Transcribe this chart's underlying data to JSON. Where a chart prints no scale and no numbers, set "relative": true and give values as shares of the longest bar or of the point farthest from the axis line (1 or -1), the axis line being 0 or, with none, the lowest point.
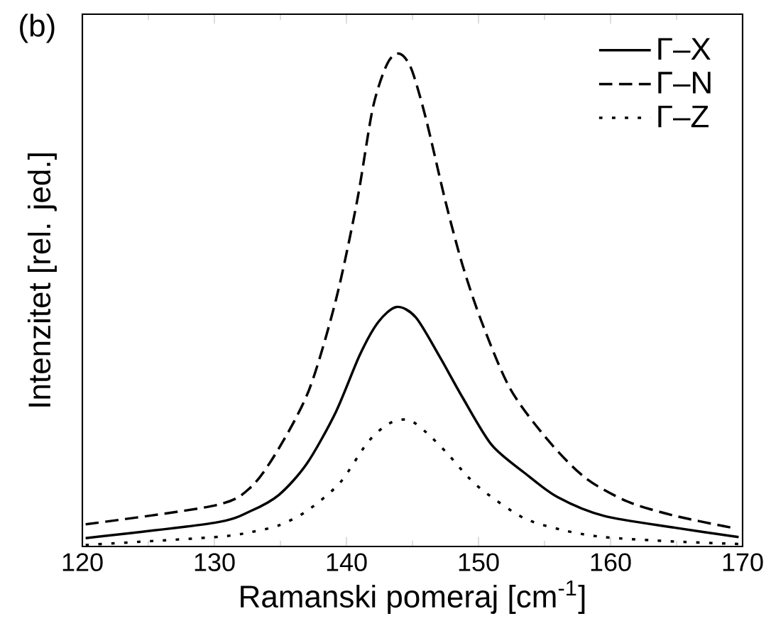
{
  "chart_data": {
    "type": "line",
    "relative": true,
    "xlabel": "Ramanski pomeraj [cm$^{-1}$]",
    "ylabel": "Intenzitet [rel. jed.]",
    "annotations": [
      "(b)"
    ],
    "xlim": [
      120,
      170
    ],
    "xticks": [
      120,
      130,
      140,
      150,
      160,
      170
    ],
    "legend": "top right",
    "grid": false,
    "marker": "none",
    "series": [
      {
        "name": "Γ–X",
        "color": "#000000",
        "line_style": "solid",
        "x": [
          120.25,
          130,
          132.75,
          134.9,
          137,
          139.2,
          141,
          142.4,
          143.8,
          145.25,
          147,
          148.8,
          151,
          153.5,
          156,
          159.5,
          164.9,
          169.7
        ],
        "values": [
          0.017,
          0.048,
          0.072,
          0.105,
          0.168,
          0.273,
          0.388,
          0.455,
          0.486,
          0.465,
          0.388,
          0.302,
          0.206,
          0.149,
          0.1,
          0.062,
          0.038,
          0.019
        ]
      },
      {
        "name": "Γ–N",
        "color": "#000000",
        "line_style": "dashed",
        "x": [
          120.25,
          130,
          132.75,
          134.9,
          137.2,
          139.2,
          140.8,
          142,
          143.1,
          144,
          144.9,
          146,
          147.5,
          148.8,
          150.25,
          152.4,
          155.25,
          158.1,
          161.3,
          164.9,
          169.2
        ],
        "values": [
          0.045,
          0.083,
          0.12,
          0.2,
          0.32,
          0.5,
          0.7,
          0.89,
          0.98,
          1.0,
          0.97,
          0.87,
          0.7,
          0.57,
          0.455,
          0.32,
          0.216,
          0.139,
          0.091,
          0.062,
          0.038
        ]
      },
      {
        "name": "Γ–Z",
        "color": "#000000",
        "line_style": "dotted",
        "x": [
          120.25,
          130,
          132.75,
          134.9,
          137,
          139.5,
          141.6,
          143.2,
          144.7,
          146.1,
          147.7,
          149.1,
          150.5,
          153.4,
          156.25,
          159.5,
          164.9,
          169.7
        ],
        "values": [
          0.003,
          0.019,
          0.029,
          0.043,
          0.072,
          0.129,
          0.211,
          0.249,
          0.257,
          0.23,
          0.187,
          0.144,
          0.11,
          0.058,
          0.034,
          0.019,
          0.01,
          0.005
        ]
      }
    ]
  }
}
